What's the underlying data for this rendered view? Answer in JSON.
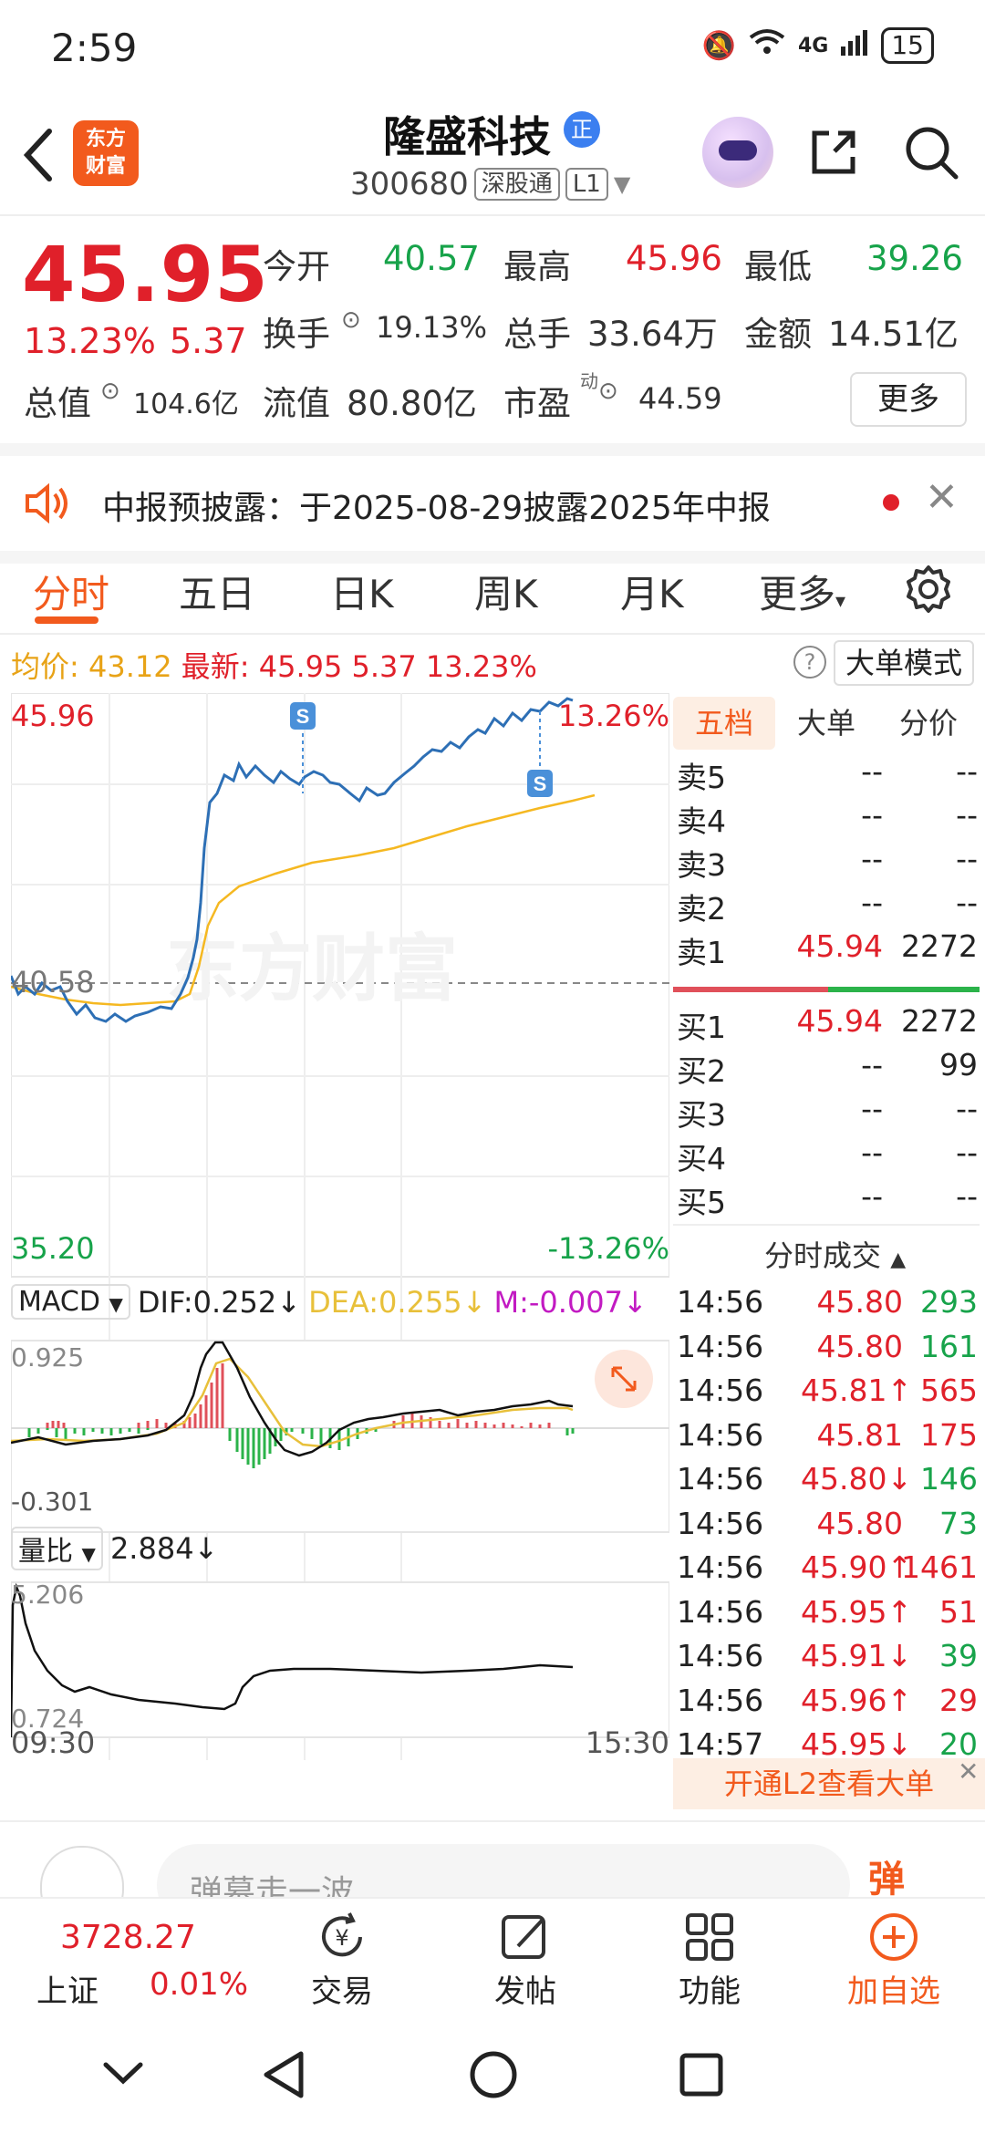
{
  "status": {
    "time": "2:59",
    "battery": "15",
    "network": "4G"
  },
  "header": {
    "logo": "东方财富",
    "name": "隆盛科技",
    "badge": "正",
    "code": "300680",
    "tag1": "深股通",
    "tag2": "L1"
  },
  "quote": {
    "price": "45.95",
    "pct": "13.23%",
    "chg": "5.37",
    "open_label": "今开",
    "open": "40.57",
    "high_label": "最高",
    "high": "45.96",
    "low_label": "最低",
    "low": "39.26",
    "turnover_label": "换手",
    "turnover": "19.13%",
    "volume_label": "总手",
    "volume": "33.64万",
    "amount_label": "金额",
    "amount": "14.51亿",
    "mktcap_label": "总值",
    "mktcap": "104.6亿",
    "float_label": "流值",
    "float": "80.80亿",
    "pe_label": "市盈",
    "pe_sup": "动",
    "pe": "44.59",
    "more": "更多"
  },
  "notice": {
    "text": "中报预披露：于2025-08-29披露2025年中报"
  },
  "tabs": [
    "分时",
    "五日",
    "日K",
    "周K",
    "月K",
    "更多"
  ],
  "info": {
    "avg_label": "均价:",
    "avg": "43.12",
    "last_label": "最新:",
    "last": "45.95",
    "chg": "5.37",
    "pct": "13.23%",
    "mode": "大单模式"
  },
  "chart": {
    "y_top": "45.96",
    "y_mid": "40.58",
    "y_bottom": "35.20",
    "pct_top": "13.26%",
    "pct_bottom": "-13.26%",
    "marker": "S",
    "x_start": "09:30",
    "x_end": "15:30",
    "macd": {
      "label": "MACD",
      "dif": "DIF:0.252↓",
      "dea": "DEA:0.255↓",
      "m": "M:-0.007↓",
      "top": "0.925",
      "bottom": "-0.301"
    },
    "vr": {
      "label": "量比",
      "value": "2.884↓",
      "top": "5.206",
      "bottom": "0.724"
    },
    "watermark": "东方财富"
  },
  "book": {
    "tabs": [
      "五档",
      "大单",
      "分价"
    ],
    "asks": [
      {
        "label": "卖5",
        "price": "--",
        "vol": "--"
      },
      {
        "label": "卖4",
        "price": "--",
        "vol": "--"
      },
      {
        "label": "卖3",
        "price": "--",
        "vol": "--"
      },
      {
        "label": "卖2",
        "price": "--",
        "vol": "--"
      },
      {
        "label": "卖1",
        "price": "45.94",
        "vol": "2272"
      }
    ],
    "bids": [
      {
        "label": "买1",
        "price": "45.94",
        "vol": "2272"
      },
      {
        "label": "买2",
        "price": "--",
        "vol": "99"
      },
      {
        "label": "买3",
        "price": "--",
        "vol": "--"
      },
      {
        "label": "买4",
        "price": "--",
        "vol": "--"
      },
      {
        "label": "买5",
        "price": "--",
        "vol": "--"
      }
    ],
    "ticks_title": "分时成交",
    "ticks": [
      {
        "t": "14:56",
        "p": "45.80",
        "v": "293",
        "c": "green"
      },
      {
        "t": "14:56",
        "p": "45.80",
        "v": "161",
        "c": "green"
      },
      {
        "t": "14:56",
        "p": "45.81↑",
        "v": "565",
        "c": "red"
      },
      {
        "t": "14:56",
        "p": "45.81",
        "v": "175",
        "c": "red"
      },
      {
        "t": "14:56",
        "p": "45.80↓",
        "v": "146",
        "c": "green"
      },
      {
        "t": "14:56",
        "p": "45.80",
        "v": "73",
        "c": "green"
      },
      {
        "t": "14:56",
        "p": "45.90↑",
        "v": "1461",
        "c": "red"
      },
      {
        "t": "14:56",
        "p": "45.95↑",
        "v": "51",
        "c": "red"
      },
      {
        "t": "14:56",
        "p": "45.91↓",
        "v": "39",
        "c": "green"
      },
      {
        "t": "14:56",
        "p": "45.96↑",
        "v": "29",
        "c": "red"
      },
      {
        "t": "14:57",
        "p": "45.95↓",
        "v": "20",
        "c": "green"
      }
    ],
    "l2": "开通L2查看大单"
  },
  "comment": {
    "placeholder": "弹幕走一波..."
  },
  "bottomnav": {
    "index_value": "3728.27",
    "index_name": "上证",
    "index_pct": "0.01%",
    "trade": "交易",
    "post": "发帖",
    "func": "功能",
    "add": "加自选"
  }
}
